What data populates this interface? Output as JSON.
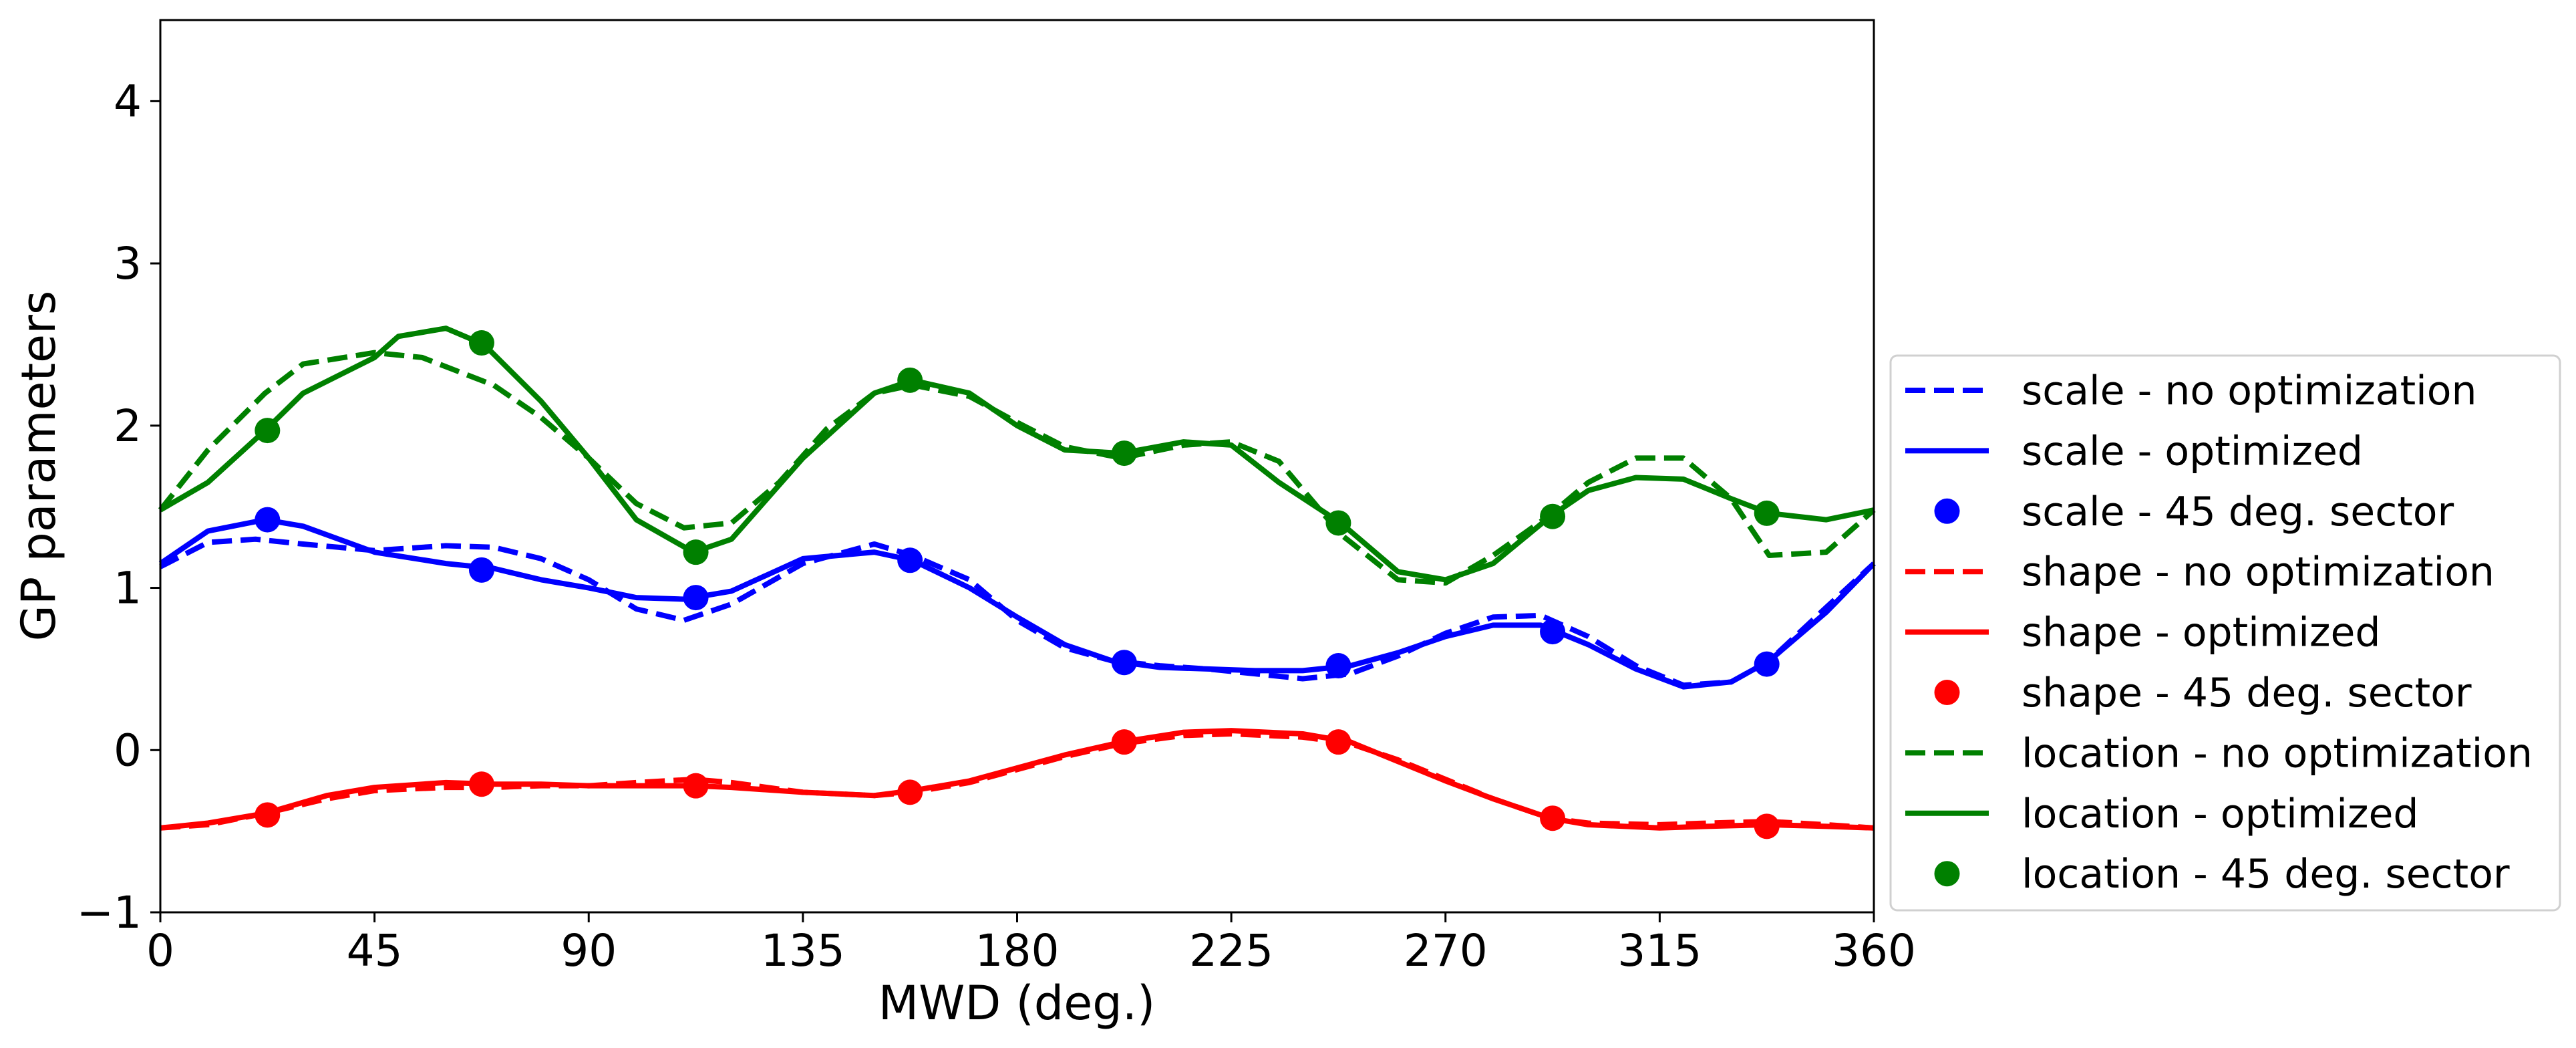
{
  "chart_data": {
    "type": "line",
    "title": "",
    "xlabel": "MWD (deg.)",
    "ylabel": "GP parameters",
    "xlim": [
      0,
      360
    ],
    "ylim": [
      -1,
      4.5
    ],
    "xticks": [
      0,
      45,
      90,
      135,
      180,
      225,
      270,
      315,
      360
    ],
    "yticks": [
      -1,
      0,
      1,
      2,
      3,
      4
    ],
    "grid": false,
    "legend_position": "outside-right",
    "series": [
      {
        "name": "scale - no optimization",
        "style": "dashed",
        "color": "#0000ff",
        "x": [
          0,
          10,
          20,
          30,
          45,
          60,
          70,
          80,
          90,
          100,
          110,
          120,
          135,
          150,
          158,
          170,
          180,
          190,
          200,
          210,
          220,
          230,
          240,
          250,
          260,
          270,
          280,
          290,
          300,
          310,
          320,
          330,
          338,
          350,
          360
        ],
        "y": [
          1.13,
          1.28,
          1.3,
          1.27,
          1.23,
          1.26,
          1.25,
          1.18,
          1.05,
          0.87,
          0.8,
          0.9,
          1.15,
          1.27,
          1.2,
          1.05,
          0.8,
          0.63,
          0.55,
          0.52,
          0.5,
          0.47,
          0.44,
          0.47,
          0.58,
          0.72,
          0.82,
          0.83,
          0.7,
          0.52,
          0.4,
          0.42,
          0.55,
          0.88,
          1.15
        ]
      },
      {
        "name": "scale - optimized",
        "style": "solid",
        "color": "#0000ff",
        "x": [
          0,
          10,
          22,
          30,
          45,
          60,
          70,
          80,
          90,
          100,
          110,
          120,
          135,
          150,
          158,
          170,
          180,
          190,
          200,
          210,
          220,
          230,
          240,
          250,
          260,
          270,
          280,
          290,
          300,
          310,
          320,
          330,
          338,
          350,
          360
        ],
        "y": [
          1.15,
          1.35,
          1.42,
          1.38,
          1.22,
          1.15,
          1.12,
          1.05,
          1.0,
          0.94,
          0.93,
          0.98,
          1.18,
          1.22,
          1.17,
          1.0,
          0.82,
          0.65,
          0.55,
          0.51,
          0.5,
          0.49,
          0.49,
          0.52,
          0.6,
          0.7,
          0.77,
          0.77,
          0.65,
          0.5,
          0.39,
          0.42,
          0.55,
          0.85,
          1.15
        ]
      },
      {
        "name": "scale - 45 deg. sector",
        "style": "markers",
        "color": "#0000ff",
        "x": [
          22.5,
          67.5,
          112.5,
          157.5,
          202.5,
          247.5,
          292.5,
          337.5
        ],
        "y": [
          1.42,
          1.11,
          0.94,
          1.17,
          0.54,
          0.52,
          0.73,
          0.53
        ]
      },
      {
        "name": "shape - no optimization",
        "style": "dashed",
        "color": "#ff0000",
        "x": [
          0,
          10,
          22,
          35,
          45,
          60,
          70,
          80,
          90,
          100,
          112,
          120,
          135,
          150,
          158,
          170,
          180,
          190,
          202,
          215,
          225,
          240,
          250,
          260,
          270,
          280,
          292,
          300,
          315,
          325,
          338,
          350,
          360
        ],
        "y": [
          -0.48,
          -0.46,
          -0.39,
          -0.3,
          -0.25,
          -0.23,
          -0.23,
          -0.22,
          -0.22,
          -0.2,
          -0.18,
          -0.2,
          -0.26,
          -0.28,
          -0.26,
          -0.2,
          -0.12,
          -0.04,
          0.04,
          0.09,
          0.1,
          0.08,
          0.04,
          -0.06,
          -0.18,
          -0.3,
          -0.42,
          -0.45,
          -0.46,
          -0.45,
          -0.44,
          -0.46,
          -0.48
        ]
      },
      {
        "name": "shape - optimized",
        "style": "solid",
        "color": "#ff0000",
        "x": [
          0,
          10,
          22,
          35,
          45,
          60,
          70,
          80,
          90,
          100,
          112,
          120,
          135,
          150,
          158,
          170,
          180,
          190,
          202,
          215,
          225,
          240,
          250,
          260,
          270,
          280,
          292,
          300,
          315,
          325,
          338,
          350,
          360
        ],
        "y": [
          -0.48,
          -0.45,
          -0.39,
          -0.28,
          -0.23,
          -0.2,
          -0.21,
          -0.21,
          -0.22,
          -0.22,
          -0.22,
          -0.23,
          -0.26,
          -0.28,
          -0.25,
          -0.19,
          -0.11,
          -0.03,
          0.05,
          0.11,
          0.12,
          0.1,
          0.05,
          -0.07,
          -0.19,
          -0.3,
          -0.42,
          -0.46,
          -0.48,
          -0.47,
          -0.46,
          -0.47,
          -0.48
        ]
      },
      {
        "name": "shape - 45 deg. sector",
        "style": "markers",
        "color": "#ff0000",
        "x": [
          22.5,
          67.5,
          112.5,
          157.5,
          202.5,
          247.5,
          292.5,
          337.5
        ],
        "y": [
          -0.4,
          -0.21,
          -0.22,
          -0.26,
          0.05,
          0.05,
          -0.42,
          -0.47
        ]
      },
      {
        "name": "location - no optimization",
        "style": "dashed",
        "color": "#008000",
        "x": [
          0,
          10,
          22,
          30,
          45,
          55,
          70,
          80,
          90,
          100,
          110,
          120,
          130,
          140,
          150,
          158,
          170,
          180,
          190,
          202,
          215,
          225,
          235,
          248,
          260,
          270,
          280,
          292,
          300,
          310,
          320,
          330,
          338,
          350,
          360
        ],
        "y": [
          1.48,
          1.85,
          2.2,
          2.38,
          2.45,
          2.42,
          2.25,
          2.05,
          1.8,
          1.52,
          1.37,
          1.4,
          1.65,
          1.98,
          2.2,
          2.25,
          2.18,
          2.02,
          1.87,
          1.8,
          1.88,
          1.9,
          1.78,
          1.33,
          1.05,
          1.03,
          1.2,
          1.45,
          1.65,
          1.8,
          1.8,
          1.55,
          1.2,
          1.22,
          1.48
        ]
      },
      {
        "name": "location - optimized",
        "style": "solid",
        "color": "#008000",
        "x": [
          0,
          10,
          22,
          30,
          45,
          50,
          60,
          68,
          80,
          90,
          100,
          112,
          120,
          135,
          150,
          158,
          170,
          180,
          190,
          202,
          215,
          225,
          235,
          248,
          260,
          270,
          280,
          292,
          300,
          310,
          320,
          330,
          338,
          350,
          360
        ],
        "y": [
          1.48,
          1.65,
          1.97,
          2.2,
          2.42,
          2.55,
          2.6,
          2.5,
          2.15,
          1.8,
          1.42,
          1.22,
          1.3,
          1.8,
          2.2,
          2.28,
          2.2,
          2.0,
          1.85,
          1.83,
          1.9,
          1.88,
          1.65,
          1.4,
          1.1,
          1.05,
          1.15,
          1.44,
          1.6,
          1.68,
          1.67,
          1.55,
          1.46,
          1.42,
          1.48
        ]
      },
      {
        "name": "location - 45 deg. sector",
        "style": "markers",
        "color": "#008000",
        "x": [
          22.5,
          67.5,
          112.5,
          157.5,
          202.5,
          247.5,
          292.5,
          337.5
        ],
        "y": [
          1.97,
          2.51,
          1.22,
          2.28,
          1.83,
          1.4,
          1.44,
          1.46
        ]
      }
    ]
  }
}
